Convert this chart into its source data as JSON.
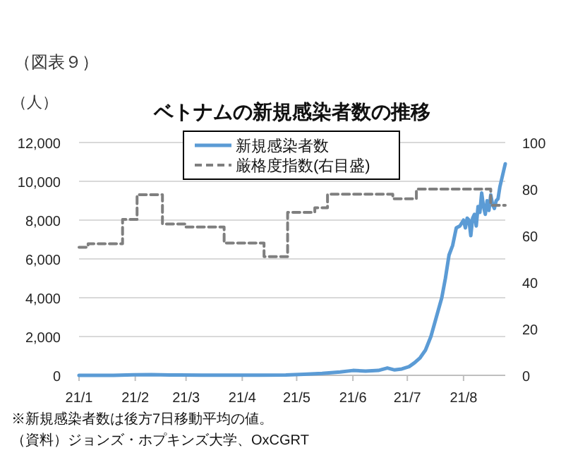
{
  "chart_data": {
    "type": "line",
    "title": "ベトナムの新規感染者数の推移",
    "ylabel": "（人）",
    "annotations": [
      "（図表９）",
      "※新規感染者数は後方7日移動平均の値。",
      "（資料）ジョンズ・ホプキンズ大学、OxCGRT"
    ],
    "xlim": [
      "--01-01",
      "--08-24"
    ],
    "xticks": [
      {
        "value": "--01-01",
        "label": "21/1"
      },
      {
        "value": "--02-01",
        "label": "21/2"
      },
      {
        "value": "--03-01",
        "label": "21/3"
      },
      {
        "value": "--04-01",
        "label": "21/4"
      },
      {
        "value": "--05-01",
        "label": "21/5"
      },
      {
        "value": "--06-01",
        "label": "21/6"
      },
      {
        "value": "--07-01",
        "label": "21/7"
      },
      {
        "value": "--08-01",
        "label": "21/8"
      }
    ],
    "ylim": [
      0,
      12000
    ],
    "yticks": [
      {
        "value": 0,
        "label": "0"
      },
      {
        "value": 2000,
        "label": "2,000"
      },
      {
        "value": 4000,
        "label": "4,000"
      },
      {
        "value": 6000,
        "label": "6,000"
      },
      {
        "value": 8000,
        "label": "8,000"
      },
      {
        "value": 10000,
        "label": "10,000"
      },
      {
        "value": 12000,
        "label": "12,000"
      }
    ],
    "y2lim": [
      0,
      100
    ],
    "y2ticks": [
      0,
      20,
      40,
      60,
      80,
      100
    ],
    "grid": "y",
    "legend": "top",
    "series": [
      {
        "name": "新規感染者数",
        "color": "#5b9bd5",
        "line_style": "solid",
        "x": [
          "--01-01",
          "--01-20",
          "--01-31",
          "--02-10",
          "--02-20",
          "--03-10",
          "--04-10",
          "--04-25",
          "--05-05",
          "--05-15",
          "--05-25",
          "--06-01",
          "--06-08",
          "--06-15",
          "--06-20",
          "--06-24",
          "--06-28",
          "--07-02",
          "--07-05",
          "--07-08",
          "--07-11",
          "--07-14",
          "--07-17",
          "--07-20",
          "--07-22",
          "--07-24",
          "--07-26",
          "--07-28",
          "--07-30",
          "--08-01",
          "--08-02",
          "--08-03",
          "--08-04",
          "--08-05",
          "--08-06",
          "--08-07",
          "--08-08",
          "--08-09",
          "--08-10",
          "--08-11",
          "--08-12",
          "--08-13",
          "--08-14",
          "--08-15",
          "--08-16",
          "--08-17",
          "--08-18",
          "--08-19",
          "--08-20",
          "--08-21",
          "--08-22",
          "--08-23",
          "--08-24"
        ],
        "values": [
          0,
          0,
          30,
          40,
          20,
          10,
          10,
          20,
          50,
          100,
          170,
          250,
          220,
          250,
          380,
          280,
          330,
          450,
          650,
          900,
          1300,
          2000,
          3000,
          4000,
          5000,
          6200,
          6700,
          7600,
          7700,
          8000,
          7600,
          8100,
          8000,
          7200,
          8100,
          8300,
          7700,
          8700,
          8400,
          9400,
          8700,
          8300,
          9000,
          8500,
          9300,
          8800,
          8600,
          9000,
          9100,
          9700,
          10100,
          10500,
          10900
        ]
      },
      {
        "name": "厳格度指数(右目盛)",
        "color": "#7f7f7f",
        "type": "step",
        "axis": "y2",
        "line_style": "dashed",
        "x": [
          "--01-01",
          "--01-06",
          "--01-25",
          "--02-02",
          "--02-16",
          "--03-01",
          "--03-22",
          "--04-13",
          "--04-26",
          "--05-11",
          "--05-18",
          "--06-23",
          "--07-06",
          "--08-16",
          "--08-24"
        ],
        "values": [
          55,
          56.5,
          67,
          77.6,
          65,
          63.7,
          56.8,
          51,
          70,
          72,
          77.8,
          75.8,
          80,
          73,
          73
        ]
      }
    ]
  }
}
